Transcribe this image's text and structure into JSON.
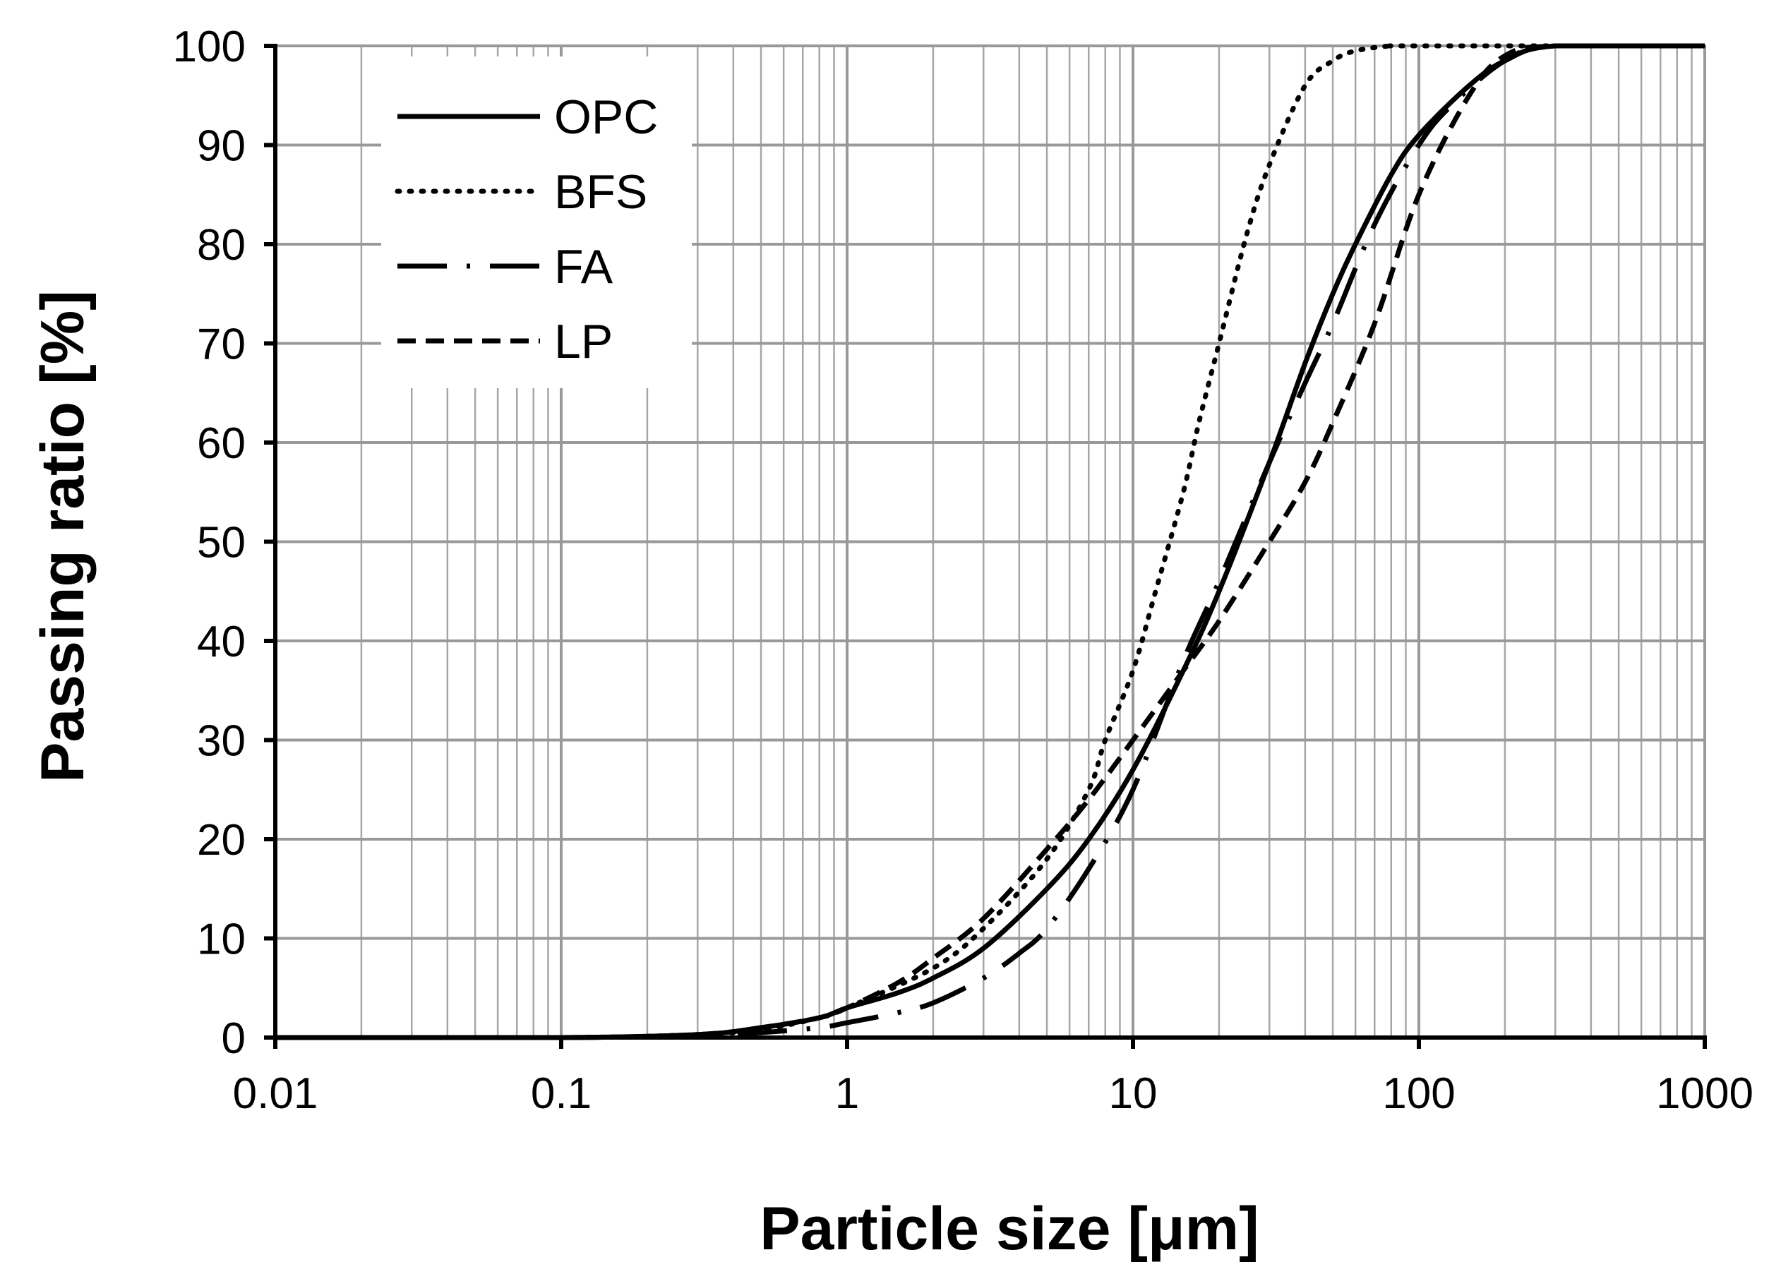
{
  "chart_data": {
    "type": "line",
    "title": "",
    "xlabel": "Particle size [μm]",
    "ylabel": "Passing ratio [%]",
    "xscale": "log",
    "xlim": [
      0.01,
      1000
    ],
    "ylim": [
      0,
      100
    ],
    "grid": true,
    "x_tick_labels": [
      "0.01",
      "0.1",
      "1",
      "10",
      "100",
      "1000"
    ],
    "y_tick_labels": [
      "0",
      "10",
      "20",
      "30",
      "40",
      "50",
      "60",
      "70",
      "80",
      "90",
      "100"
    ],
    "legend_position": "top-left",
    "series": [
      {
        "name": "OPC",
        "style": "solid",
        "color": "#000000",
        "x": [
          0.01,
          0.1,
          0.3,
          0.5,
          0.8,
          1,
          1.5,
          2,
          3,
          5,
          7,
          10,
          15,
          20,
          30,
          40,
          50,
          60,
          80,
          100,
          150,
          200,
          300,
          1000
        ],
        "y": [
          0,
          0,
          0.3,
          1,
          2,
          3,
          4.5,
          6,
          9,
          15,
          20,
          27,
          37,
          45,
          58,
          68,
          75,
          80,
          87,
          91,
          96,
          98.5,
          100,
          100
        ]
      },
      {
        "name": "BFS",
        "style": "dotted",
        "color": "#000000",
        "x": [
          0.01,
          0.1,
          0.3,
          0.5,
          0.8,
          1,
          2,
          3,
          5,
          7,
          8,
          10,
          12,
          15,
          17,
          20,
          25,
          30,
          40,
          50,
          60,
          80,
          100,
          1000
        ],
        "y": [
          0,
          0,
          0.3,
          0.8,
          2,
          3,
          7,
          11,
          18,
          25,
          30,
          37,
          45,
          55,
          62,
          70,
          81,
          88,
          96,
          98.5,
          99.5,
          100,
          100,
          100
        ]
      },
      {
        "name": "FA",
        "style": "long-dash-dot",
        "color": "#000000",
        "x": [
          0.01,
          0.1,
          0.3,
          0.5,
          0.8,
          1,
          1.5,
          2,
          3,
          4,
          5,
          7,
          10,
          15,
          20,
          30,
          40,
          50,
          70,
          100,
          130,
          200,
          300,
          1000
        ],
        "y": [
          0,
          0,
          0.2,
          0.5,
          1,
          1.5,
          2.5,
          3.5,
          6,
          8.5,
          11,
          17,
          25,
          38,
          46,
          58,
          66,
          72,
          82,
          90,
          94,
          98.5,
          100,
          100
        ]
      },
      {
        "name": "LP",
        "style": "dashed",
        "color": "#000000",
        "x": [
          0.01,
          0.1,
          0.3,
          0.5,
          0.8,
          1,
          1.5,
          2,
          3,
          5,
          7,
          10,
          15,
          20,
          30,
          40,
          50,
          70,
          100,
          150,
          200,
          300,
          1000
        ],
        "y": [
          0,
          0,
          0.3,
          1,
          2,
          3,
          5.5,
          8,
          12,
          19,
          24,
          30,
          37,
          42,
          50,
          56,
          62,
          72,
          85,
          95,
          99,
          100,
          100
        ]
      }
    ]
  }
}
